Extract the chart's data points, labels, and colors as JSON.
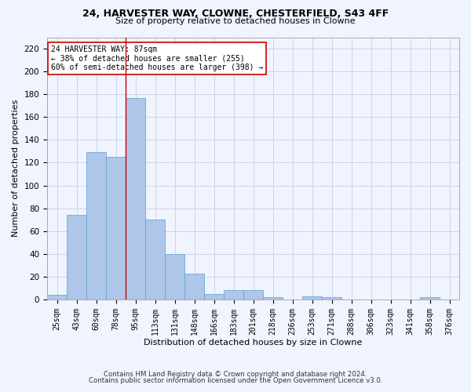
{
  "title1": "24, HARVESTER WAY, CLOWNE, CHESTERFIELD, S43 4FF",
  "title2": "Size of property relative to detached houses in Clowne",
  "xlabel": "Distribution of detached houses by size in Clowne",
  "ylabel": "Number of detached properties",
  "categories": [
    "25sqm",
    "43sqm",
    "60sqm",
    "78sqm",
    "95sqm",
    "113sqm",
    "131sqm",
    "148sqm",
    "166sqm",
    "183sqm",
    "201sqm",
    "218sqm",
    "236sqm",
    "253sqm",
    "271sqm",
    "288sqm",
    "306sqm",
    "323sqm",
    "341sqm",
    "358sqm",
    "376sqm"
  ],
  "values": [
    4,
    74,
    129,
    125,
    177,
    70,
    40,
    23,
    5,
    8,
    8,
    2,
    0,
    3,
    2,
    0,
    0,
    0,
    0,
    2,
    0
  ],
  "bar_color": "#aec6e8",
  "bar_edge_color": "#5a9fd4",
  "vline_x": 3.5,
  "vline_color": "#cc0000",
  "annotation_line1": "24 HARVESTER WAY: 87sqm",
  "annotation_line2": "← 38% of detached houses are smaller (255)",
  "annotation_line3": "60% of semi-detached houses are larger (398) →",
  "annotation_box_color": "#ffffff",
  "annotation_box_edge_color": "#cc0000",
  "ylim": [
    0,
    230
  ],
  "yticks": [
    0,
    20,
    40,
    60,
    80,
    100,
    120,
    140,
    160,
    180,
    200,
    220
  ],
  "footer1": "Contains HM Land Registry data © Crown copyright and database right 2024.",
  "footer2": "Contains public sector information licensed under the Open Government Licence v3.0.",
  "bg_color": "#f0f4ff",
  "grid_color": "#c8d0e0"
}
